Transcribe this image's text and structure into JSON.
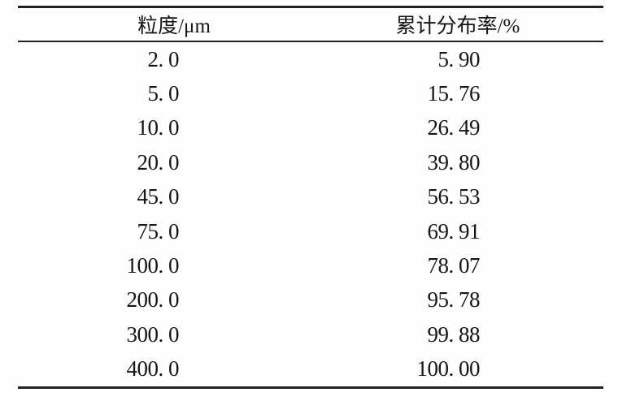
{
  "table": {
    "columns": [
      "粒度/μm",
      "累计分布率/%"
    ],
    "rows": [
      [
        "2. 0",
        "5. 90"
      ],
      [
        "5. 0",
        "15. 76"
      ],
      [
        "10. 0",
        "26. 49"
      ],
      [
        "20. 0",
        "39. 80"
      ],
      [
        "45. 0",
        "56. 53"
      ],
      [
        "75. 0",
        "69. 91"
      ],
      [
        "100. 0",
        "78. 07"
      ],
      [
        "200. 0",
        "95. 78"
      ],
      [
        "300. 0",
        "99. 88"
      ],
      [
        "400. 0",
        "100. 00"
      ]
    ]
  },
  "chart_data": {
    "type": "table",
    "title": "",
    "columns": [
      "粒度/μm",
      "累计分布率/%"
    ],
    "x_name": "粒度",
    "x_unit": "μm",
    "y_name": "累计分布率",
    "y_unit": "%",
    "x": [
      2.0,
      5.0,
      10.0,
      20.0,
      45.0,
      75.0,
      100.0,
      200.0,
      300.0,
      400.0
    ],
    "y": [
      5.9,
      15.76,
      26.49,
      39.8,
      56.53,
      69.91,
      78.07,
      95.78,
      99.88,
      100.0
    ]
  },
  "colors": {
    "background": "#fdfdfd",
    "text": "#151515",
    "rule": "#222222"
  }
}
